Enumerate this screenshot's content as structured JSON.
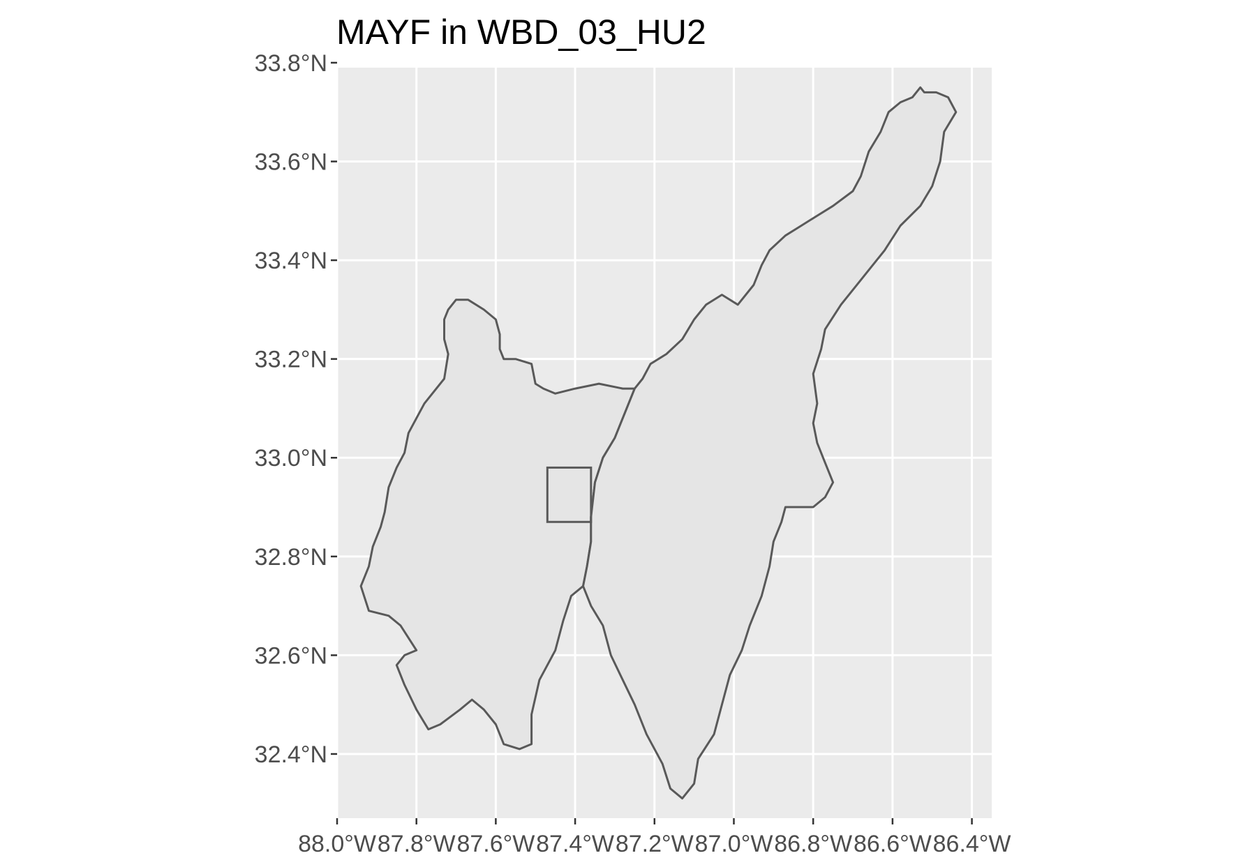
{
  "title": "MAYF in WBD_03_HU2",
  "colors": {
    "panel_background": "#ebebeb",
    "grid": "#ffffff",
    "polygon_fill": "#e5e5e5",
    "polygon_outline": "#595959",
    "axis_text": "#4d4d4d",
    "title_text": "#000000"
  },
  "chart_data": {
    "type": "map",
    "title": "MAYF in WBD_03_HU2",
    "xlabel": "",
    "ylabel": "",
    "xlim": [
      -88.0,
      -86.35
    ],
    "ylim": [
      32.27,
      33.79
    ],
    "grid": true,
    "x_ticks": {
      "values": [
        -88.0,
        -87.8,
        -87.6,
        -87.4,
        -87.2,
        -87.0,
        -86.8,
        -86.6,
        -86.4
      ],
      "labels": [
        "88.0°W",
        "87.8°W",
        "87.6°W",
        "87.4°W",
        "87.2°W",
        "87.0°W",
        "86.8°W",
        "86.6°W",
        "86.4°W"
      ]
    },
    "y_ticks": {
      "values": [
        33.8,
        33.6,
        33.4,
        33.2,
        33.0,
        32.8,
        32.6,
        32.4
      ],
      "labels": [
        "33.8°N",
        "33.6°N",
        "33.4°N",
        "33.2°N",
        "33.0°N",
        "32.8°N",
        "32.6°N",
        "32.4°N"
      ]
    },
    "polygons": [
      {
        "coords": [
          [
            -87.28,
            33.14
          ],
          [
            -87.34,
            33.15
          ],
          [
            -87.4,
            33.14
          ],
          [
            -87.45,
            33.13
          ],
          [
            -87.48,
            33.14
          ],
          [
            -87.5,
            33.15
          ],
          [
            -87.51,
            33.19
          ],
          [
            -87.55,
            33.2
          ],
          [
            -87.58,
            33.2
          ],
          [
            -87.59,
            33.22
          ],
          [
            -87.59,
            33.25
          ],
          [
            -87.6,
            33.28
          ],
          [
            -87.63,
            33.3
          ],
          [
            -87.67,
            33.32
          ],
          [
            -87.7,
            33.32
          ],
          [
            -87.72,
            33.3
          ],
          [
            -87.73,
            33.28
          ],
          [
            -87.73,
            33.24
          ],
          [
            -87.72,
            33.21
          ],
          [
            -87.73,
            33.16
          ],
          [
            -87.78,
            33.11
          ],
          [
            -87.8,
            33.08
          ],
          [
            -87.82,
            33.05
          ],
          [
            -87.83,
            33.01
          ],
          [
            -87.85,
            32.98
          ],
          [
            -87.87,
            32.94
          ],
          [
            -87.88,
            32.89
          ],
          [
            -87.89,
            32.86
          ],
          [
            -87.91,
            32.82
          ],
          [
            -87.92,
            32.78
          ],
          [
            -87.94,
            32.74
          ],
          [
            -87.92,
            32.69
          ],
          [
            -87.87,
            32.68
          ],
          [
            -87.84,
            32.66
          ],
          [
            -87.8,
            32.61
          ],
          [
            -87.83,
            32.6
          ],
          [
            -87.85,
            32.58
          ],
          [
            -87.83,
            32.54
          ],
          [
            -87.8,
            32.49
          ],
          [
            -87.77,
            32.45
          ],
          [
            -87.74,
            32.46
          ],
          [
            -87.69,
            32.49
          ],
          [
            -87.66,
            32.51
          ],
          [
            -87.63,
            32.49
          ],
          [
            -87.6,
            32.46
          ],
          [
            -87.58,
            32.42
          ],
          [
            -87.54,
            32.41
          ],
          [
            -87.51,
            32.42
          ],
          [
            -87.51,
            32.48
          ],
          [
            -87.49,
            32.55
          ],
          [
            -87.45,
            32.61
          ],
          [
            -87.43,
            32.67
          ],
          [
            -87.41,
            32.72
          ],
          [
            -87.38,
            32.74
          ],
          [
            -87.37,
            32.78
          ],
          [
            -87.36,
            32.83
          ],
          [
            -87.36,
            32.88
          ],
          [
            -87.35,
            32.95
          ],
          [
            -87.33,
            33.0
          ],
          [
            -87.3,
            33.04
          ],
          [
            -87.27,
            33.1
          ],
          [
            -87.25,
            33.14
          ],
          [
            -87.28,
            33.14
          ]
        ]
      },
      {
        "coords": [
          [
            -86.49,
            33.74
          ],
          [
            -86.52,
            33.74
          ],
          [
            -86.53,
            33.75
          ],
          [
            -86.55,
            33.73
          ],
          [
            -86.58,
            33.72
          ],
          [
            -86.61,
            33.7
          ],
          [
            -86.63,
            33.66
          ],
          [
            -86.66,
            33.62
          ],
          [
            -86.68,
            33.57
          ],
          [
            -86.7,
            33.54
          ],
          [
            -86.75,
            33.51
          ],
          [
            -86.81,
            33.48
          ],
          [
            -86.87,
            33.45
          ],
          [
            -86.91,
            33.42
          ],
          [
            -86.93,
            33.39
          ],
          [
            -86.95,
            33.35
          ],
          [
            -86.99,
            33.31
          ],
          [
            -87.03,
            33.33
          ],
          [
            -87.07,
            33.31
          ],
          [
            -87.1,
            33.28
          ],
          [
            -87.13,
            33.24
          ],
          [
            -87.17,
            33.21
          ],
          [
            -87.21,
            33.19
          ],
          [
            -87.23,
            33.16
          ],
          [
            -87.25,
            33.14
          ],
          [
            -87.27,
            33.1
          ],
          [
            -87.3,
            33.04
          ],
          [
            -87.33,
            33.0
          ],
          [
            -87.35,
            32.95
          ],
          [
            -87.36,
            32.88
          ],
          [
            -87.36,
            32.83
          ],
          [
            -87.37,
            32.78
          ],
          [
            -87.38,
            32.74
          ],
          [
            -87.36,
            32.7
          ],
          [
            -87.33,
            32.66
          ],
          [
            -87.31,
            32.6
          ],
          [
            -87.28,
            32.55
          ],
          [
            -87.25,
            32.5
          ],
          [
            -87.22,
            32.44
          ],
          [
            -87.18,
            32.38
          ],
          [
            -87.16,
            32.33
          ],
          [
            -87.13,
            32.31
          ],
          [
            -87.1,
            32.34
          ],
          [
            -87.09,
            32.39
          ],
          [
            -87.05,
            32.44
          ],
          [
            -87.03,
            32.5
          ],
          [
            -87.01,
            32.56
          ],
          [
            -86.98,
            32.61
          ],
          [
            -86.96,
            32.66
          ],
          [
            -86.93,
            32.72
          ],
          [
            -86.91,
            32.78
          ],
          [
            -86.9,
            32.83
          ],
          [
            -86.88,
            32.87
          ],
          [
            -86.87,
            32.9
          ],
          [
            -86.8,
            32.9
          ],
          [
            -86.77,
            32.92
          ],
          [
            -86.75,
            32.95
          ],
          [
            -86.77,
            32.99
          ],
          [
            -86.79,
            33.03
          ],
          [
            -86.8,
            33.07
          ],
          [
            -86.79,
            33.11
          ],
          [
            -86.8,
            33.17
          ],
          [
            -86.78,
            33.22
          ],
          [
            -86.77,
            33.26
          ],
          [
            -86.73,
            33.31
          ],
          [
            -86.68,
            33.36
          ],
          [
            -86.62,
            33.42
          ],
          [
            -86.58,
            33.47
          ],
          [
            -86.53,
            33.51
          ],
          [
            -86.5,
            33.55
          ],
          [
            -86.48,
            33.6
          ],
          [
            -86.47,
            33.66
          ],
          [
            -86.44,
            33.7
          ],
          [
            -86.46,
            33.73
          ],
          [
            -86.49,
            33.74
          ]
        ]
      }
    ],
    "site_box": {
      "xmin": -87.47,
      "xmax": -87.36,
      "ymin": 32.87,
      "ymax": 32.98
    }
  }
}
